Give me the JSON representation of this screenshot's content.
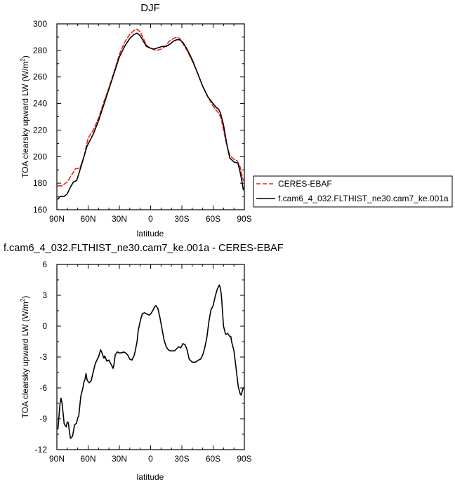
{
  "chart_data": [
    {
      "type": "line",
      "title": "DJF",
      "xlabel": "latitude",
      "ylabel": "TOA clearsky upward LW (W/m",
      "ylabel_sup": "2",
      "ylabel_close": ")",
      "xlim": [
        90,
        -90
      ],
      "ylim": [
        160,
        300
      ],
      "xticks": [
        90,
        60,
        30,
        0,
        -30,
        -60,
        -90
      ],
      "xtick_labels": [
        "90N",
        "60N",
        "30N",
        "0",
        "30S",
        "60S",
        "90S"
      ],
      "yticks": [
        160,
        180,
        200,
        220,
        240,
        260,
        280,
        300
      ],
      "yticklabels": [
        "160",
        "180",
        "200",
        "220",
        "240",
        "260",
        "280",
        "300"
      ],
      "legend": "right",
      "series": [
        {
          "name": "CERES-EBAF",
          "color": "#e8221c",
          "dash": "dashed",
          "x": [
            89,
            85,
            80,
            76,
            72,
            68,
            64,
            60,
            55,
            50,
            45,
            40,
            35,
            30,
            25,
            20,
            16,
            13,
            10,
            7,
            4,
            1,
            -2,
            -6,
            -10,
            -14,
            -18,
            -22,
            -25,
            -28,
            -31,
            -35,
            -40,
            -45,
            -50,
            -55,
            -60,
            -63,
            -66,
            -68,
            -70,
            -73,
            -76,
            -80,
            -83,
            -86,
            -88,
            -89
          ],
          "y": [
            178,
            178,
            181,
            186,
            191,
            191,
            200,
            214,
            220,
            229,
            241,
            252,
            264,
            277,
            286,
            292,
            295,
            296,
            294,
            289,
            284,
            282,
            281,
            280,
            281,
            283,
            287,
            289,
            290,
            289,
            285,
            280,
            272,
            263,
            253,
            245,
            238,
            235,
            232,
            228,
            220,
            209,
            201,
            198,
            197,
            192,
            185,
            182
          ]
        },
        {
          "name": "f.cam6_4_032.FLTHIST_ne30.cam7_ke.001a",
          "color": "#000000",
          "dash": "solid",
          "x": [
            89,
            87,
            83,
            80,
            77,
            74,
            71,
            69,
            67,
            64,
            61,
            59,
            55,
            50,
            45,
            40,
            35,
            30,
            25,
            20,
            16,
            13,
            10,
            7,
            4,
            1,
            -3,
            -7,
            -11,
            -15,
            -19,
            -22,
            -25,
            -28,
            -31,
            -35,
            -40,
            -45,
            -50,
            -55,
            -60,
            -63,
            -65,
            -67,
            -70,
            -73,
            -76,
            -80,
            -84,
            -86,
            -88,
            -89
          ],
          "y": [
            168,
            170,
            170,
            172,
            177,
            181,
            182,
            187,
            192,
            200,
            208,
            211,
            217,
            227,
            239,
            251,
            263,
            275,
            283,
            289,
            292,
            293,
            291,
            287,
            283,
            282,
            281,
            282,
            283,
            283,
            285,
            287,
            288,
            288,
            286,
            281,
            273,
            263,
            253,
            245,
            240,
            237,
            236,
            233,
            224,
            210,
            199,
            196,
            195,
            188,
            180,
            175
          ]
        }
      ]
    },
    {
      "type": "line",
      "title": "f.cam6_4_032.FLTHIST_ne30.cam7_ke.001a - CERES-EBAF",
      "xlabel": "latitude",
      "ylabel": "TOA clearsky upward LW (W/m",
      "ylabel_sup": "2",
      "ylabel_close": ")",
      "xlim": [
        90,
        -90
      ],
      "ylim": [
        -12,
        6
      ],
      "xticks": [
        90,
        60,
        30,
        0,
        -30,
        -60,
        -90
      ],
      "xtick_labels": [
        "90N",
        "60N",
        "30N",
        "0",
        "30S",
        "60S",
        "90S"
      ],
      "yticks": [
        -12,
        -9,
        -6,
        -3,
        0,
        3,
        6
      ],
      "yticklabels": [
        "-12",
        "-9",
        "-6",
        "-3",
        "0",
        "3",
        "6"
      ],
      "series": [
        {
          "name": "",
          "color": "#000000",
          "dash": "solid",
          "x": [
            89,
            87,
            86,
            85,
            83,
            81,
            80,
            79,
            78,
            77,
            75,
            73,
            71,
            70,
            69,
            67,
            65,
            64,
            63,
            62,
            61,
            60,
            59,
            58,
            57,
            55,
            53,
            51,
            50,
            48,
            47,
            45,
            44,
            42,
            40,
            38,
            36,
            35,
            34,
            32,
            30,
            28,
            26,
            24,
            22,
            20,
            18,
            16,
            15,
            13,
            12,
            10,
            8,
            6,
            4,
            2,
            1,
            0,
            -2,
            -4,
            -5,
            -7,
            -9,
            -11,
            -13,
            -15,
            -17,
            -19,
            -21,
            -23,
            -25,
            -27,
            -29,
            -31,
            -33,
            -35,
            -37,
            -40,
            -43,
            -46,
            -48,
            -50,
            -52,
            -54,
            -56,
            -58,
            -60,
            -62,
            -64,
            -66,
            -67,
            -68,
            -70,
            -72,
            -74,
            -76,
            -77,
            -78,
            -80,
            -82,
            -84,
            -86,
            -87,
            -88,
            -89
          ],
          "y": [
            -10,
            -7.5,
            -7.0,
            -7.5,
            -9.5,
            -9.8,
            -9.3,
            -9.4,
            -10.2,
            -10.9,
            -10.7,
            -9.6,
            -9.4,
            -8.9,
            -8.7,
            -6.8,
            -6.0,
            -5.4,
            -5.2,
            -4.6,
            -5.2,
            -5.4,
            -5.5,
            -5.4,
            -5.3,
            -4.4,
            -3.6,
            -3.2,
            -3.0,
            -2.3,
            -2.5,
            -3.1,
            -2.9,
            -3.4,
            -3.3,
            -3.7,
            -4.1,
            -3.6,
            -2.8,
            -2.5,
            -2.6,
            -2.6,
            -2.5,
            -2.6,
            -2.8,
            -3.2,
            -3.3,
            -2.9,
            -2.5,
            -1.5,
            -0.5,
            0.5,
            1.2,
            1.3,
            1.2,
            1.1,
            1.1,
            1.2,
            1.5,
            1.9,
            2.0,
            1.7,
            0.8,
            -0.3,
            -1.4,
            -2.0,
            -2.3,
            -2.4,
            -2.4,
            -2.4,
            -2.2,
            -2.0,
            -2.1,
            -1.7,
            -1.8,
            -2.3,
            -3.2,
            -3.5,
            -3.5,
            -3.3,
            -3.2,
            -2.8,
            -2.1,
            -1.1,
            0.5,
            1.6,
            2.0,
            2.9,
            3.6,
            4.0,
            3.7,
            2.9,
            0.0,
            -0.8,
            -0.7,
            -1.0,
            -1.0,
            -1.6,
            -2.4,
            -4.0,
            -5.8,
            -6.6,
            -6.7,
            -6.3,
            -6.0
          ]
        }
      ]
    }
  ]
}
